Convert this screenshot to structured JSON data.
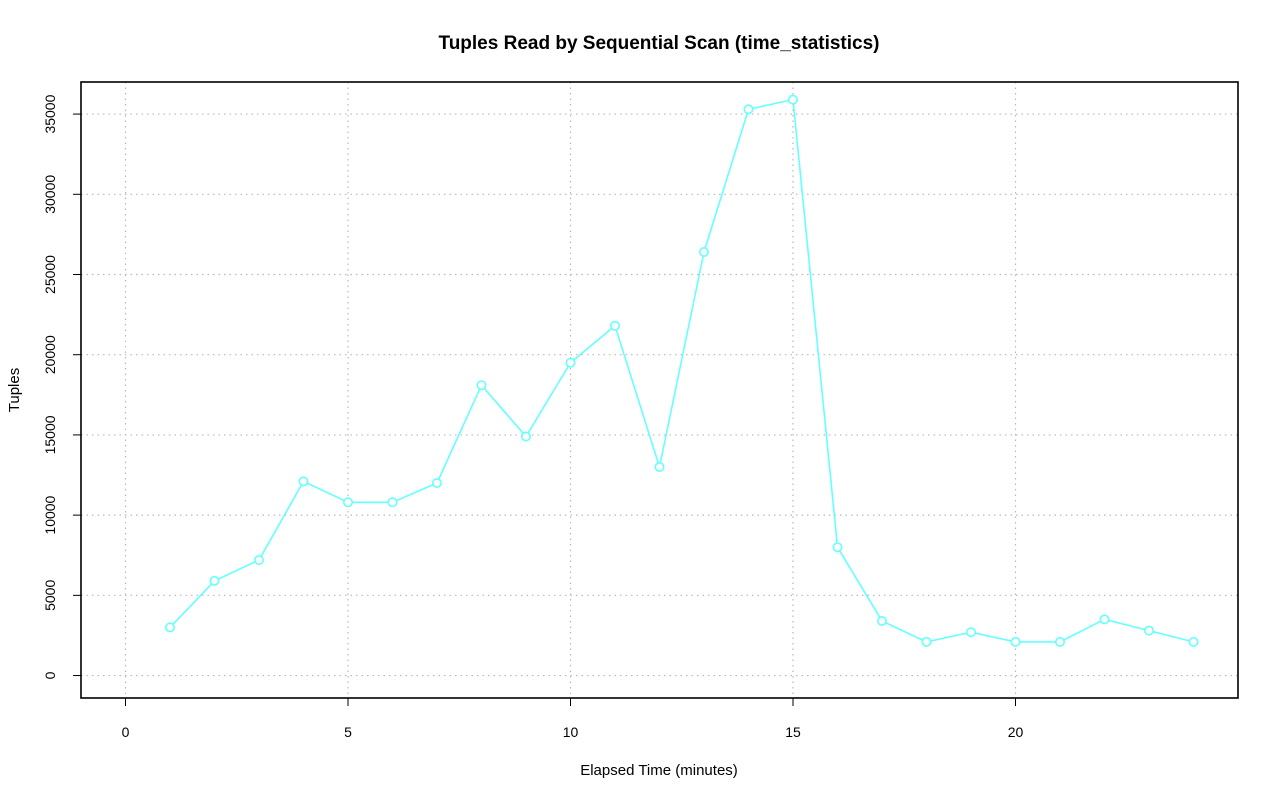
{
  "chart_data": {
    "type": "line",
    "title": "Tuples Read by Sequential Scan (time_statistics)",
    "xlabel": "Elapsed Time (minutes)",
    "ylabel": "Tuples",
    "xlim": [
      -1,
      25
    ],
    "ylim": [
      -1400,
      37000
    ],
    "x_ticks": [
      0,
      5,
      10,
      15,
      20
    ],
    "y_ticks": [
      0,
      5000,
      10000,
      15000,
      20000,
      25000,
      30000,
      35000
    ],
    "grid": true,
    "series": [
      {
        "color": "#66ffff",
        "x": [
          1,
          2,
          3,
          4,
          5,
          6,
          7,
          8,
          9,
          10,
          11,
          12,
          13,
          14,
          15,
          16,
          17,
          18,
          19,
          20,
          21,
          22,
          23,
          24
        ],
        "values": [
          3000,
          5900,
          7200,
          12100,
          10800,
          10800,
          12000,
          18100,
          14900,
          19500,
          21800,
          13000,
          26400,
          35300,
          35900,
          8000,
          3400,
          2100,
          2700,
          2100,
          2100,
          3500,
          2800,
          2100
        ]
      }
    ]
  }
}
